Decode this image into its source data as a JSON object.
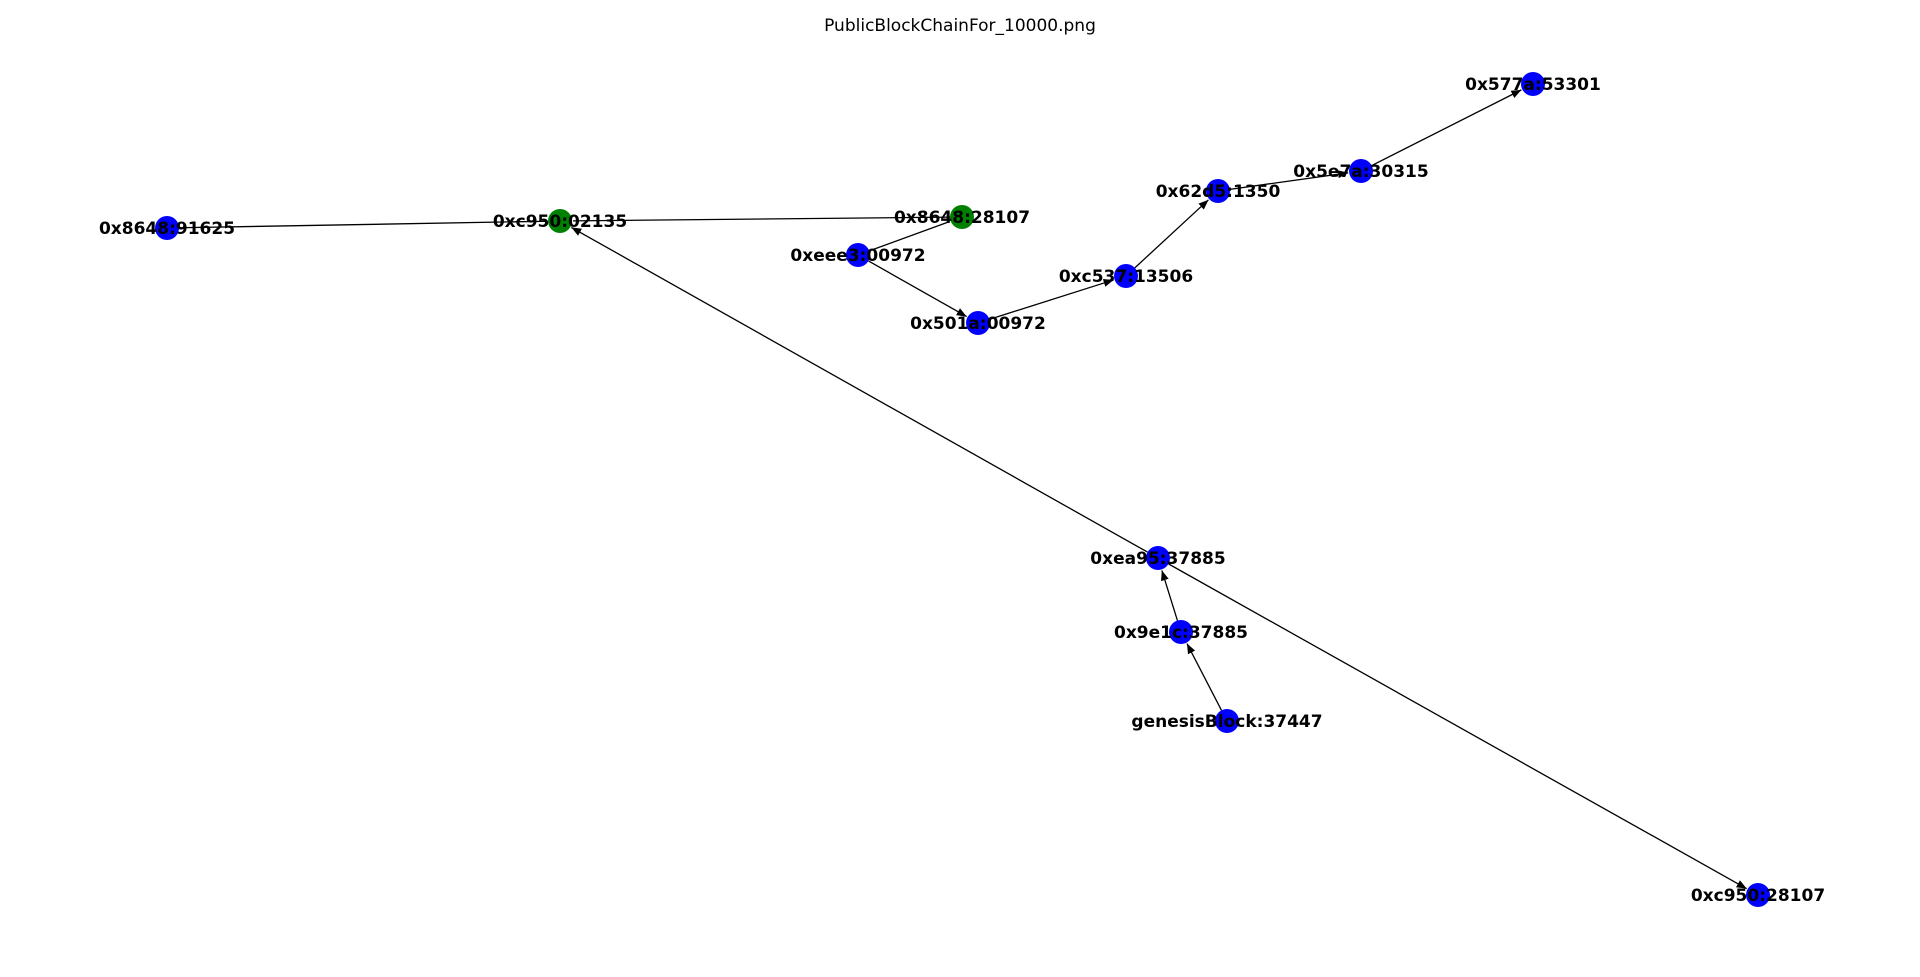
{
  "title": "PublicBlockChainFor_10000.png",
  "colors": {
    "blue_node": "#0000ff",
    "green_node": "#008000",
    "edge": "#000000"
  },
  "nodes": [
    {
      "id": "n_8648_91625",
      "label": "0x8648:91625",
      "color": "blue"
    },
    {
      "id": "n_c950_02135",
      "label": "0xc950:02135",
      "color": "green"
    },
    {
      "id": "n_8648_28107",
      "label": "0x8648:28107",
      "color": "green"
    },
    {
      "id": "n_eee3_00972",
      "label": "0xeee3:00972",
      "color": "blue"
    },
    {
      "id": "n_501a_00972",
      "label": "0x501a:00972",
      "color": "blue"
    },
    {
      "id": "n_c537_13506",
      "label": "0xc537:13506",
      "color": "blue"
    },
    {
      "id": "n_62d5_1350",
      "label": "0x62d5:1350",
      "color": "blue"
    },
    {
      "id": "n_5e7a_30315",
      "label": "0x5e7a:30315",
      "color": "blue"
    },
    {
      "id": "n_577a_53301",
      "label": "0x577a:53301",
      "color": "blue"
    },
    {
      "id": "n_ea95_37885",
      "label": "0xea95:37885",
      "color": "blue"
    },
    {
      "id": "n_9e1c_37885",
      "label": "0x9e1c:37885",
      "color": "blue"
    },
    {
      "id": "n_genesis",
      "label": "genesisBlock:37447",
      "color": "blue"
    },
    {
      "id": "n_c950_28107",
      "label": "0xc950:28107",
      "color": "blue"
    }
  ],
  "edges": [
    {
      "from": "n_8648_91625",
      "to": "n_c950_02135",
      "arrow": false
    },
    {
      "from": "n_8648_28107",
      "to": "n_c950_02135",
      "arrow": false
    },
    {
      "from": "n_eee3_00972",
      "to": "n_8648_28107",
      "arrow": false
    },
    {
      "from": "n_eee3_00972",
      "to": "n_501a_00972",
      "arrow": true
    },
    {
      "from": "n_501a_00972",
      "to": "n_c537_13506",
      "arrow": true
    },
    {
      "from": "n_c537_13506",
      "to": "n_62d5_1350",
      "arrow": true
    },
    {
      "from": "n_62d5_1350",
      "to": "n_5e7a_30315",
      "arrow": true
    },
    {
      "from": "n_5e7a_30315",
      "to": "n_577a_53301",
      "arrow": true
    },
    {
      "from": "n_ea95_37885",
      "to": "n_c950_02135",
      "arrow": true
    },
    {
      "from": "n_ea95_37885",
      "to": "n_c950_28107",
      "arrow": true
    },
    {
      "from": "n_9e1c_37885",
      "to": "n_ea95_37885",
      "arrow": true
    },
    {
      "from": "n_genesis",
      "to": "n_9e1c_37885",
      "arrow": true
    }
  ]
}
